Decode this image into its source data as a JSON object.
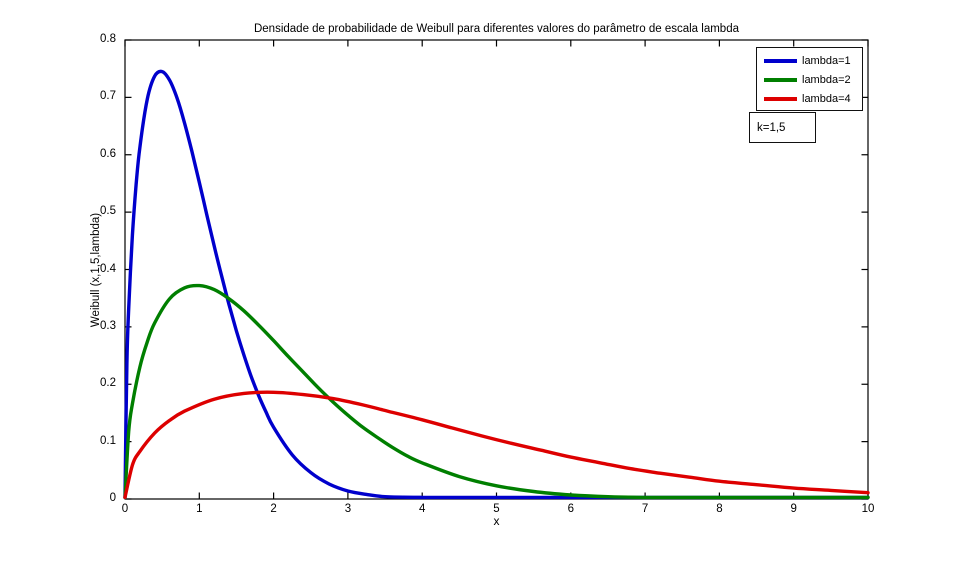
{
  "chart_data": {
    "type": "line",
    "title": "Densidade de probabilidade de Weibull para diferentes valores do parâmetro de escala lambda",
    "xlabel": "x",
    "ylabel": "Weibull (x,1,5,lambda)",
    "annotation": "k=1,5",
    "k_value": 1.5,
    "xlim": [
      0,
      10
    ],
    "ylim": [
      0,
      0.8
    ],
    "x_tick_labels": [
      "0",
      "1",
      "2",
      "3",
      "4",
      "5",
      "6",
      "7",
      "8",
      "9",
      "10"
    ],
    "y_tick_labels": [
      "0",
      "0.1",
      "0.2",
      "0.3",
      "0.4",
      "0.5",
      "0.6",
      "0.7",
      "0.8"
    ],
    "grid": false,
    "legend_position": "top-right",
    "axis_color": "#000000",
    "background_color": "#ffffff",
    "series": [
      {
        "name": "lambda=1",
        "lambda": 1,
        "color": "#0000cc",
        "points": [
          [
            0,
            0
          ],
          [
            0.025,
            0.236
          ],
          [
            0.05,
            0.332
          ],
          [
            0.1,
            0.46
          ],
          [
            0.15,
            0.548
          ],
          [
            0.2,
            0.613
          ],
          [
            0.3,
            0.697
          ],
          [
            0.4,
            0.737
          ],
          [
            0.5,
            0.745
          ],
          [
            0.6,
            0.73
          ],
          [
            0.7,
            0.699
          ],
          [
            0.8,
            0.656
          ],
          [
            0.9,
            0.606
          ],
          [
            1.0,
            0.552
          ],
          [
            1.1,
            0.496
          ],
          [
            1.2,
            0.441
          ],
          [
            1.3,
            0.389
          ],
          [
            1.4,
            0.339
          ],
          [
            1.5,
            0.293
          ],
          [
            1.6,
            0.251
          ],
          [
            1.7,
            0.213
          ],
          [
            1.8,
            0.18
          ],
          [
            1.9,
            0.151
          ],
          [
            2.0,
            0.125
          ],
          [
            2.25,
            0.077
          ],
          [
            2.5,
            0.046
          ],
          [
            2.75,
            0.026
          ],
          [
            3.0,
            0.014
          ],
          [
            3.25,
            0.008
          ],
          [
            3.5,
            0.004
          ],
          [
            4.0,
            0.001
          ],
          [
            4.5,
            0.0002
          ],
          [
            5,
            0
          ],
          [
            6,
            0
          ],
          [
            7,
            0
          ],
          [
            8,
            0
          ],
          [
            9,
            0
          ],
          [
            10,
            0
          ]
        ]
      },
      {
        "name": "lambda=2",
        "lambda": 2,
        "color": "#007f00",
        "points": [
          [
            0,
            0
          ],
          [
            0.05,
            0.118
          ],
          [
            0.1,
            0.166
          ],
          [
            0.2,
            0.23
          ],
          [
            0.3,
            0.274
          ],
          [
            0.4,
            0.307
          ],
          [
            0.6,
            0.349
          ],
          [
            0.8,
            0.368
          ],
          [
            1.0,
            0.372
          ],
          [
            1.2,
            0.365
          ],
          [
            1.4,
            0.349
          ],
          [
            1.6,
            0.328
          ],
          [
            1.8,
            0.303
          ],
          [
            2.0,
            0.276
          ],
          [
            2.2,
            0.248
          ],
          [
            2.4,
            0.221
          ],
          [
            2.6,
            0.194
          ],
          [
            2.8,
            0.169
          ],
          [
            3.0,
            0.146
          ],
          [
            3.2,
            0.125
          ],
          [
            3.4,
            0.107
          ],
          [
            3.6,
            0.09
          ],
          [
            3.8,
            0.075
          ],
          [
            4.0,
            0.063
          ],
          [
            4.5,
            0.039
          ],
          [
            5.0,
            0.023
          ],
          [
            5.5,
            0.013
          ],
          [
            6.0,
            0.007
          ],
          [
            6.5,
            0.004
          ],
          [
            7.0,
            0.002
          ],
          [
            7.5,
            0.001
          ],
          [
            8.0,
            0.001
          ],
          [
            9.0,
            0
          ],
          [
            10,
            0
          ]
        ]
      },
      {
        "name": "lambda=4",
        "lambda": 4,
        "color": "#dd0000",
        "points": [
          [
            0,
            0
          ],
          [
            0.1,
            0.059
          ],
          [
            0.2,
            0.083
          ],
          [
            0.4,
            0.115
          ],
          [
            0.6,
            0.137
          ],
          [
            0.8,
            0.153
          ],
          [
            1.2,
            0.174
          ],
          [
            1.6,
            0.184
          ],
          [
            2.0,
            0.186
          ],
          [
            2.4,
            0.182
          ],
          [
            2.8,
            0.175
          ],
          [
            3.2,
            0.164
          ],
          [
            3.6,
            0.151
          ],
          [
            4.0,
            0.138
          ],
          [
            4.4,
            0.124
          ],
          [
            4.8,
            0.11
          ],
          [
            5.2,
            0.097
          ],
          [
            5.6,
            0.085
          ],
          [
            6.0,
            0.073
          ],
          [
            6.4,
            0.063
          ],
          [
            6.8,
            0.053
          ],
          [
            7.2,
            0.045
          ],
          [
            7.6,
            0.038
          ],
          [
            8.0,
            0.031
          ],
          [
            8.5,
            0.025
          ],
          [
            9.0,
            0.019
          ],
          [
            9.5,
            0.015
          ],
          [
            10,
            0.011
          ]
        ]
      }
    ]
  }
}
